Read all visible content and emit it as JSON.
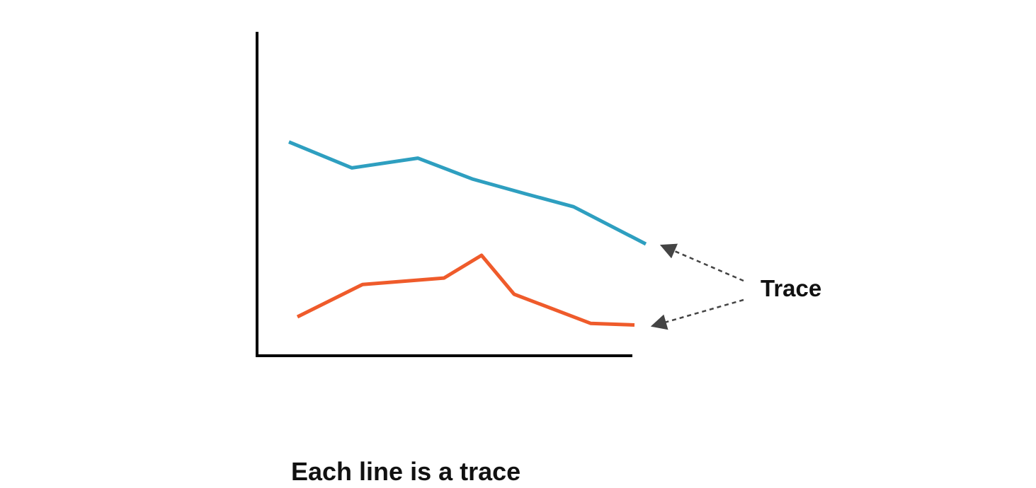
{
  "annotation": {
    "label": "Trace",
    "arrow_color": "#444444"
  },
  "caption": "Each line is a trace",
  "colors": {
    "axis": "#000000",
    "trace_blue": "#2e9fc0",
    "trace_orange": "#ef5b2b"
  },
  "chart_data": {
    "type": "line",
    "title": "",
    "xlabel": "",
    "ylabel": "",
    "x": [
      0,
      1,
      2,
      3,
      4,
      5,
      6,
      7
    ],
    "xlim": [
      -0.5,
      8
    ],
    "ylim": [
      0,
      10
    ],
    "grid": false,
    "series": [
      {
        "color": "#2e9fc0",
        "x": [
          0,
          1,
          2,
          3,
          4,
          5,
          6
        ],
        "values": [
          6.6,
          5.8,
          6.1,
          5.45,
          5.0,
          4.6,
          3.45
        ]
      },
      {
        "color": "#ef5b2b",
        "x": [
          0,
          1,
          2,
          3,
          4,
          5,
          6
        ],
        "values": [
          1.2,
          2.2,
          2.4,
          3.1,
          1.9,
          1.0,
          0.95
        ]
      }
    ]
  }
}
